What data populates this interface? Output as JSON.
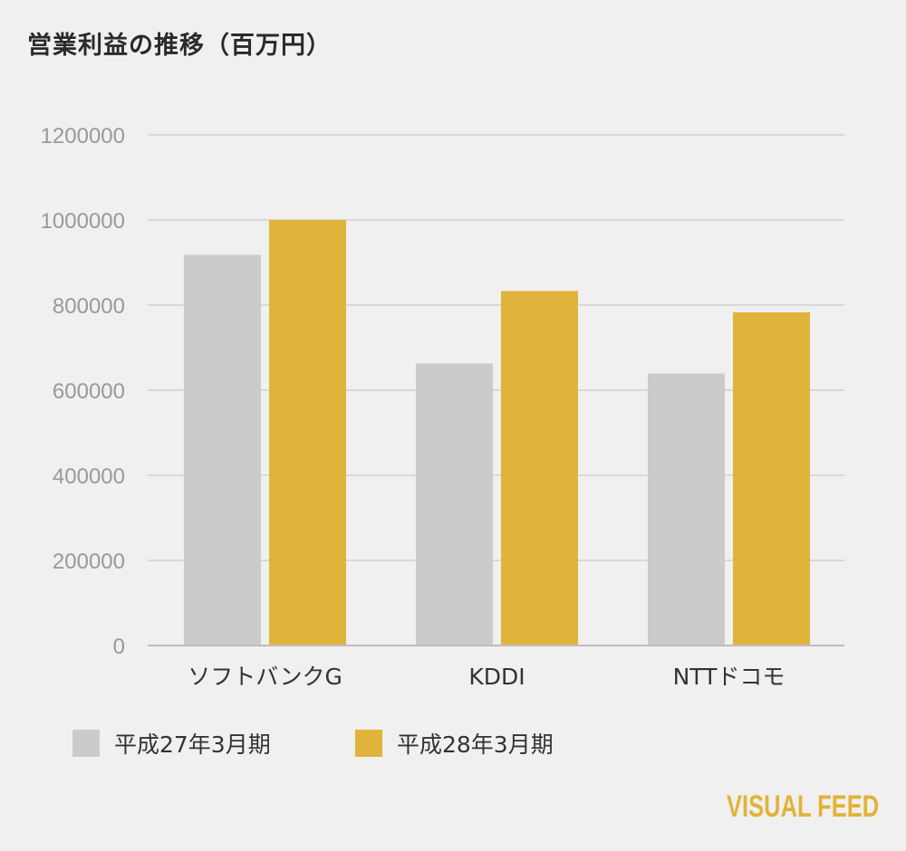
{
  "title": "営業利益の推移（百万円）",
  "brand": "VISUAL FEED",
  "colors": {
    "series_0": "#cbcbcb",
    "series_1": "#e0b33a",
    "grid": "#cfcfcf",
    "axis": "#bdbdbd"
  },
  "chart_data": {
    "type": "bar",
    "categories": [
      "ソフトバンクG",
      "KDDI",
      "NTTドコモ"
    ],
    "series": [
      {
        "name": "平成27年3月期",
        "values": [
          918000,
          663000,
          639000
        ]
      },
      {
        "name": "平成28年3月期",
        "values": [
          1000000,
          833000,
          783000
        ]
      }
    ],
    "ylim": [
      0,
      1200000
    ],
    "yticks": [
      0,
      200000,
      400000,
      600000,
      800000,
      1000000,
      1200000
    ],
    "grid": true,
    "legend_position": "bottom-left"
  }
}
